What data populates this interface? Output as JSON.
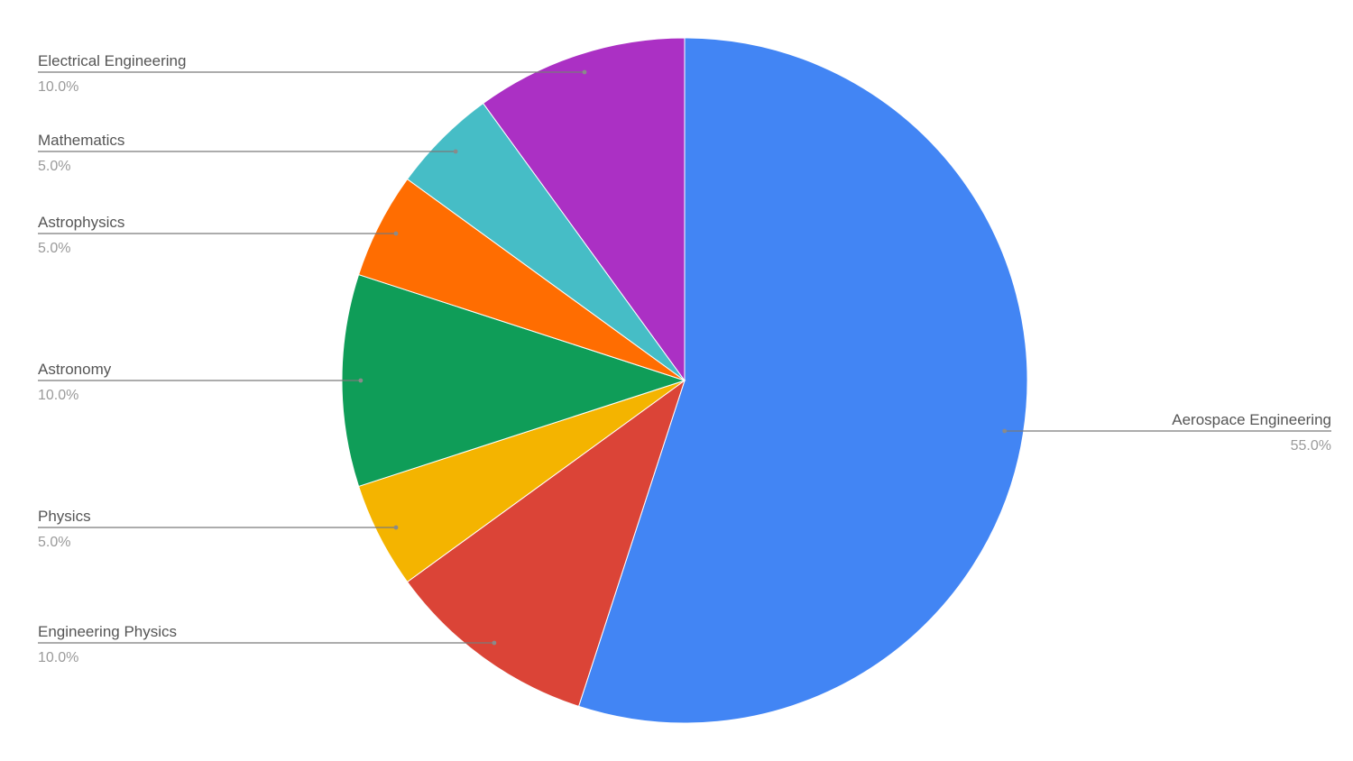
{
  "chart_data": {
    "type": "pie",
    "title": "",
    "slices": [
      {
        "label": "Aerospace Engineering",
        "value": 55.0,
        "pct_label": "55.0%",
        "color": "#4285F4",
        "label_side": "right"
      },
      {
        "label": "Engineering Physics",
        "value": 10.0,
        "pct_label": "10.0%",
        "color": "#DB4437",
        "label_side": "left"
      },
      {
        "label": "Physics",
        "value": 5.0,
        "pct_label": "5.0%",
        "color": "#F4B400",
        "label_side": "left"
      },
      {
        "label": "Astronomy",
        "value": 10.0,
        "pct_label": "10.0%",
        "color": "#0F9D58",
        "label_side": "left"
      },
      {
        "label": "Astrophysics",
        "value": 5.0,
        "pct_label": "5.0%",
        "color": "#FF6D01",
        "label_side": "left"
      },
      {
        "label": "Mathematics",
        "value": 5.0,
        "pct_label": "5.0%",
        "color": "#46BDC6",
        "label_side": "left"
      },
      {
        "label": "Electrical Engineering",
        "value": 10.0,
        "pct_label": "10.0%",
        "color": "#AB30C4",
        "label_side": "left"
      }
    ],
    "start_angle": "12 o'clock",
    "direction": "clockwise",
    "legend": "none",
    "labels": "outside with leader lines"
  }
}
